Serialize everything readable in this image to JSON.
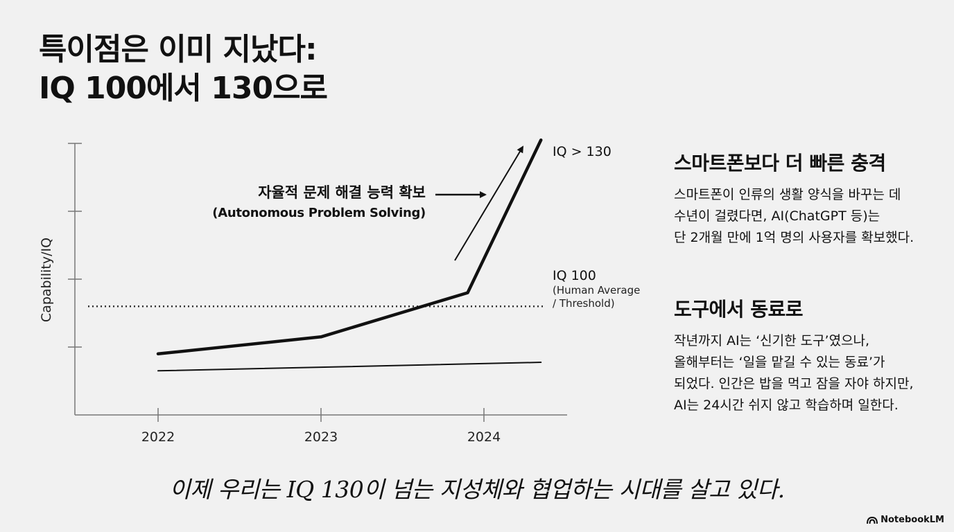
{
  "title": {
    "line1": "특이점은 이미 지났다:",
    "line2": "IQ 100에서 130으로"
  },
  "chart_data": {
    "type": "line",
    "categories": [
      "2022",
      "2023",
      "2024"
    ],
    "ylabel": "Capability/IQ",
    "xlabel": "",
    "series": [
      {
        "name": "",
        "role": "ai",
        "x": [
          2022,
          2023,
          2023.9,
          2024.35
        ],
        "y": [
          68,
          73,
          86,
          131
        ]
      },
      {
        "name": "",
        "role": "baseline",
        "x": [
          2022,
          2024.35
        ],
        "y": [
          63,
          65.5
        ]
      }
    ],
    "reference_line": {
      "y": 82,
      "label": "IQ 100",
      "sublabel1": "(Human Average",
      "sublabel2": "/ Threshold)"
    },
    "top_label": "IQ > 130",
    "annotation": {
      "label_ko": "자율적 문제 해결 능력 확보",
      "label_en": "(Autonomous Problem Solving)"
    },
    "colors": {
      "ink": "#111111",
      "reference": "#333333"
    }
  },
  "section1": {
    "heading": "스마트폰보다 더 빠른 충격",
    "lines": [
      "스마트폰이 인류의 생활 양식을 바꾸는 데",
      "수년이 걸렸다면, AI(ChatGPT 등)는",
      "단 2개월 만에 1억 명의 사용자를 확보했다."
    ]
  },
  "section2": {
    "heading": "도구에서 동료로",
    "lines": [
      "작년까지 AI는 ‘신기한 도구’였으나,",
      "올해부터는 ‘일을 맡길 수 있는 동료’가",
      "되었다. 인간은 밥을 먹고 잠을 자야 하지만,",
      "AI는 24시간 쉬지 않고 학습하며 일한다."
    ]
  },
  "closing": "이제 우리는 IQ 130이 넘는 지성체와 협업하는 시대를 살고 있다.",
  "brand": {
    "name": "NotebookLM",
    "icon": "notebooklm-logo-icon"
  }
}
